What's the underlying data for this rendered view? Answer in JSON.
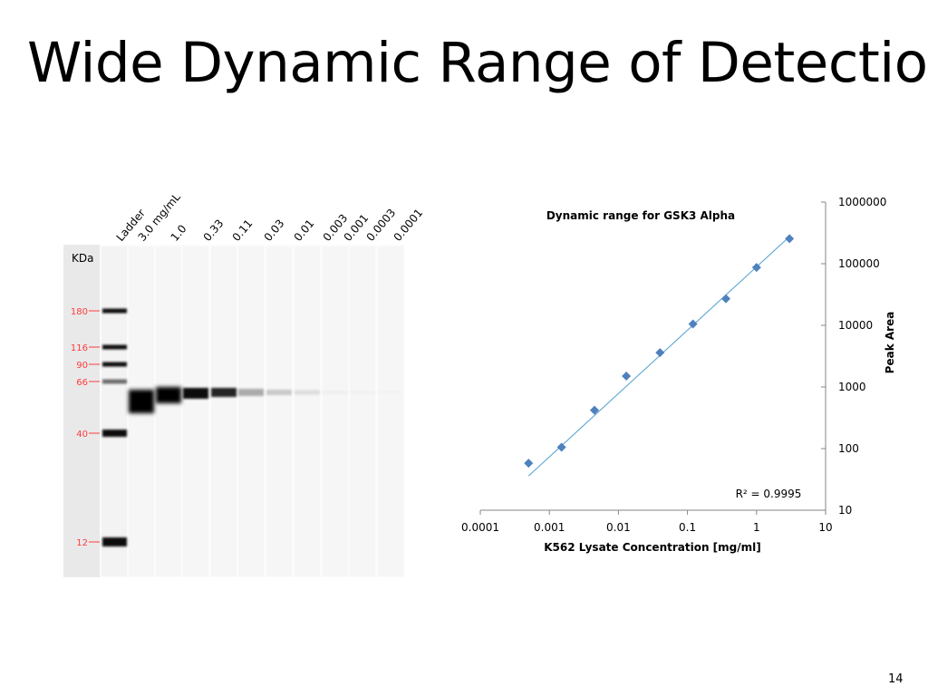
{
  "slide": {
    "title": "Wide Dynamic Range of Detection",
    "page_number": "14"
  },
  "gel": {
    "unit_label": "KDa",
    "lane_labels": [
      "Ladder",
      "3.0 mg/mL",
      "1.0",
      "0.33",
      "0.11",
      "0.03",
      "0.01",
      "0.003",
      "0.001",
      "0.0003",
      "0.0001"
    ],
    "marker_labels": [
      "180",
      "116",
      "90",
      "66",
      "40",
      "12"
    ],
    "marker_color": "#ff3b3b"
  },
  "chart_data": {
    "type": "scatter",
    "title": "Dynamic range for GSK3 Alpha",
    "xlabel": "K562 Lysate Concentration  [mg/ml]",
    "ylabel": "Peak Area",
    "x_scale": "log",
    "y_scale": "log",
    "xlim": [
      0.0001,
      10
    ],
    "ylim": [
      10,
      1000000
    ],
    "x_tick_labels": [
      "0.0001",
      "0.001",
      "0.01",
      "0.1",
      "1",
      "10"
    ],
    "y_tick_labels": [
      "10",
      "100",
      "1000",
      "10000",
      "100000",
      "1000000"
    ],
    "y_axis_position": "right",
    "grid": false,
    "marker": "diamond",
    "series_color": "#4f81bd",
    "trendline_color": "#4f9fd0",
    "x": [
      0.0005,
      0.0015,
      0.0045,
      0.013,
      0.04,
      0.12,
      0.36,
      1.0,
      3.0
    ],
    "y": [
      58,
      105,
      420,
      1500,
      3600,
      10500,
      27000,
      87000,
      255000
    ],
    "trendline": {
      "x": [
        0.0005,
        3.0
      ],
      "y": [
        36,
        275000
      ]
    },
    "annotation": "R² = 0.9995"
  }
}
